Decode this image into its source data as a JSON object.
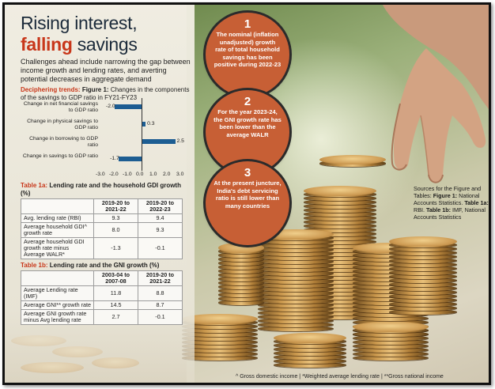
{
  "title": {
    "line1": "Rising interest,",
    "line2_highlight": "falling",
    "line2_rest": " savings"
  },
  "subtitle": "Challenges ahead include narrowing the gap between income growth and lending rates, and averting potential decreases in aggregate demand",
  "figure": {
    "label": "Deciphering trends:",
    "name": "Figure 1:",
    "caption": " Changes in the components of the savings to GDP ratio in FY21-FY23"
  },
  "chart_data": {
    "type": "bar",
    "orientation": "horizontal",
    "categories": [
      "Change in net financial savings to GDP ratio",
      "Change in physical savings to GDP ratio",
      "Change in borrowing to GDP ratio",
      "Change in savings to GDP ratio"
    ],
    "values": [
      -2.0,
      0.3,
      2.5,
      -1.7
    ],
    "value_labels": [
      "-2.0",
      "0.3",
      "2.5",
      "-1.7"
    ],
    "xlim": [
      -3.0,
      3.0
    ],
    "xticks": [
      "-3.0",
      "-2.0",
      "-1.0",
      "0.0",
      "1.0",
      "2.0",
      "3.0"
    ],
    "bar_color": "#1d5d92"
  },
  "table1a": {
    "title_red": "Table 1a:",
    "title_rest": " Lending rate and the household GDI growth (%)",
    "headers": [
      "",
      "2019-20 to 2021-22",
      "2019-20 to 2022-23"
    ],
    "rows": [
      [
        "Avg. lending rate (RBI)",
        "9.3",
        "9.4"
      ],
      [
        "Average household GDI^ growth rate",
        "8.0",
        "9.3"
      ],
      [
        "Average household GDI growth rate minus Average WALR*",
        "-1.3",
        "-0.1"
      ]
    ]
  },
  "table1b": {
    "title_red": "Table 1b:",
    "title_rest": " Lending rate and the GNI growth (%)",
    "headers": [
      "",
      "2003-04 to 2007-08",
      "2019-20 to 2021-22"
    ],
    "rows": [
      [
        "Average Lending rate (IMF)",
        "11.8",
        "8.8"
      ],
      [
        "Average GNI** growth rate",
        "14.5",
        "8.7"
      ],
      [
        "Average GNI growth rate minus Avg lending rate",
        "2.7",
        "-0.1"
      ]
    ]
  },
  "circles": [
    {
      "number": "1",
      "text": "The nominal (inflation unadjusted) growth rate of total household savings has been positive during 2022-23"
    },
    {
      "number": "2",
      "text": "For the year 2023-24, the GNI growth rate has been lower than the average WALR"
    },
    {
      "number": "3",
      "text": "At the present juncture, India's debt servicing ratio is still lower than many countries"
    }
  ],
  "sources": {
    "intro": "Sources for the Figure and Tables: ",
    "fig_label": "Figure 1:",
    "fig_text": " National Accounts Statistics. ",
    "t1a_label": "Table 1a:",
    "t1a_text": " RBI. ",
    "t1b_label": "Table 1b:",
    "t1b_text": " IMF, National Accounts Statistics"
  },
  "footnote": "^ Gross domestic income | *Weighted average lending rate | **Gross national income",
  "colors": {
    "accent_red": "#c8371a",
    "circle_fill": "#c75f35",
    "title_dark": "#1b2a3a",
    "bar_blue": "#1d5d92"
  }
}
